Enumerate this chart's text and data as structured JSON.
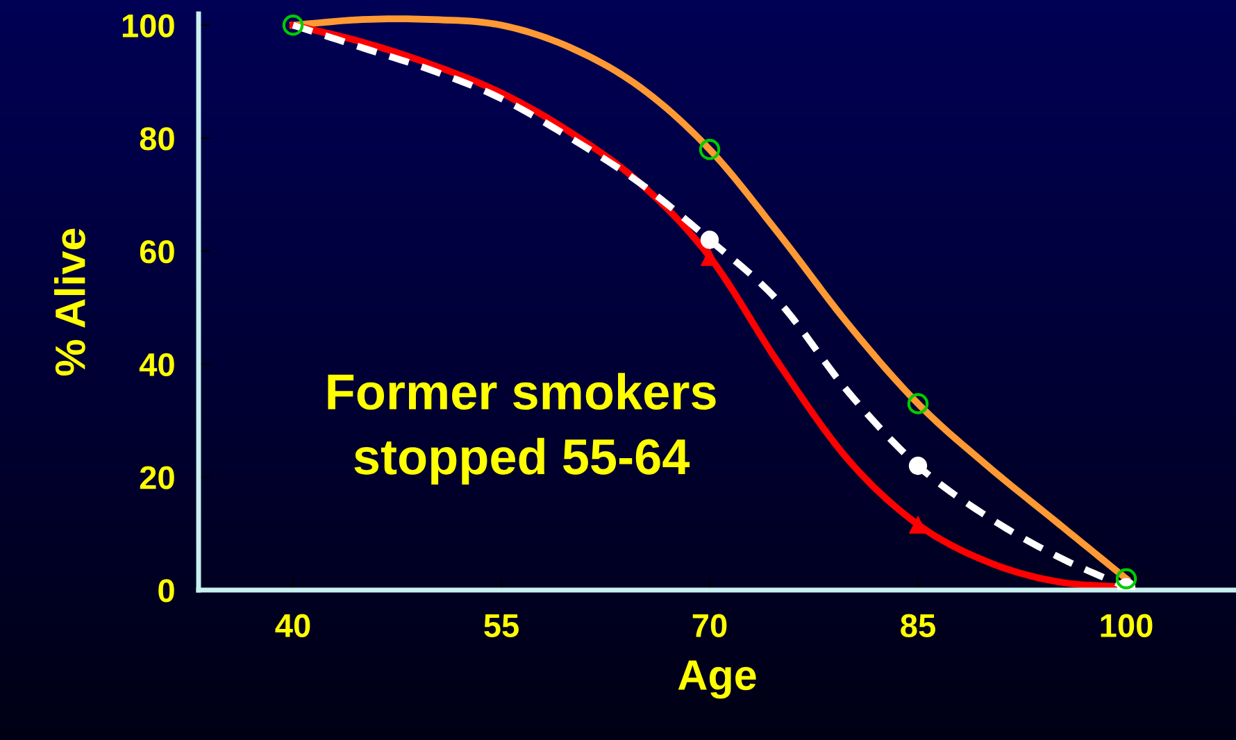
{
  "chart_data": {
    "type": "line",
    "xlabel": "Age",
    "ylabel": "% Alive",
    "xlim": [
      33.2,
      107.9
    ],
    "ylim": [
      0,
      102
    ],
    "xticks": [
      40,
      55,
      70,
      85,
      100
    ],
    "yticks": [
      0,
      20,
      40,
      60,
      80,
      100
    ],
    "grid": false,
    "series": [
      {
        "color": "#ff9933",
        "line_style": "solid",
        "x": [
          40,
          45,
          50,
          55,
          60,
          65,
          70,
          75,
          80,
          85,
          90,
          95,
          100
        ],
        "values": [
          100,
          101,
          101,
          100,
          96,
          89,
          78,
          63,
          47,
          33,
          22,
          12,
          2
        ]
      },
      {
        "color": "#ff0000",
        "line_style": "solid",
        "x": [
          40,
          45,
          50,
          55,
          60,
          65,
          70,
          75,
          80,
          85,
          90,
          95,
          100
        ],
        "values": [
          100,
          97,
          93,
          88,
          81,
          72,
          59,
          40,
          23,
          11.6,
          5,
          1.5,
          0.5
        ]
      },
      {
        "color": "#ffffff",
        "line_style": "dashed",
        "x": [
          40,
          45,
          50,
          55,
          60,
          65,
          70,
          75,
          80,
          85,
          90,
          95,
          100
        ],
        "values": [
          100,
          96,
          92,
          87,
          80,
          72,
          62,
          51,
          35,
          22,
          13,
          6,
          0.5
        ]
      },
      {
        "type": "scatter",
        "color": "#00cc00",
        "marker": "circle",
        "x": [
          40,
          70,
          85,
          100
        ],
        "values": [
          100,
          78,
          33,
          2
        ]
      },
      {
        "type": "scatter",
        "color": "#ff0000",
        "marker": "triangle",
        "x": [
          70,
          85
        ],
        "values": [
          59,
          11.6
        ]
      },
      {
        "type": "scatter",
        "color": "#ffffff",
        "marker": "circle",
        "x": [
          70,
          85,
          100
        ],
        "values": [
          62,
          22,
          0.5
        ]
      }
    ],
    "annotations": [
      "Former smokers\nstopped 55-64"
    ]
  }
}
